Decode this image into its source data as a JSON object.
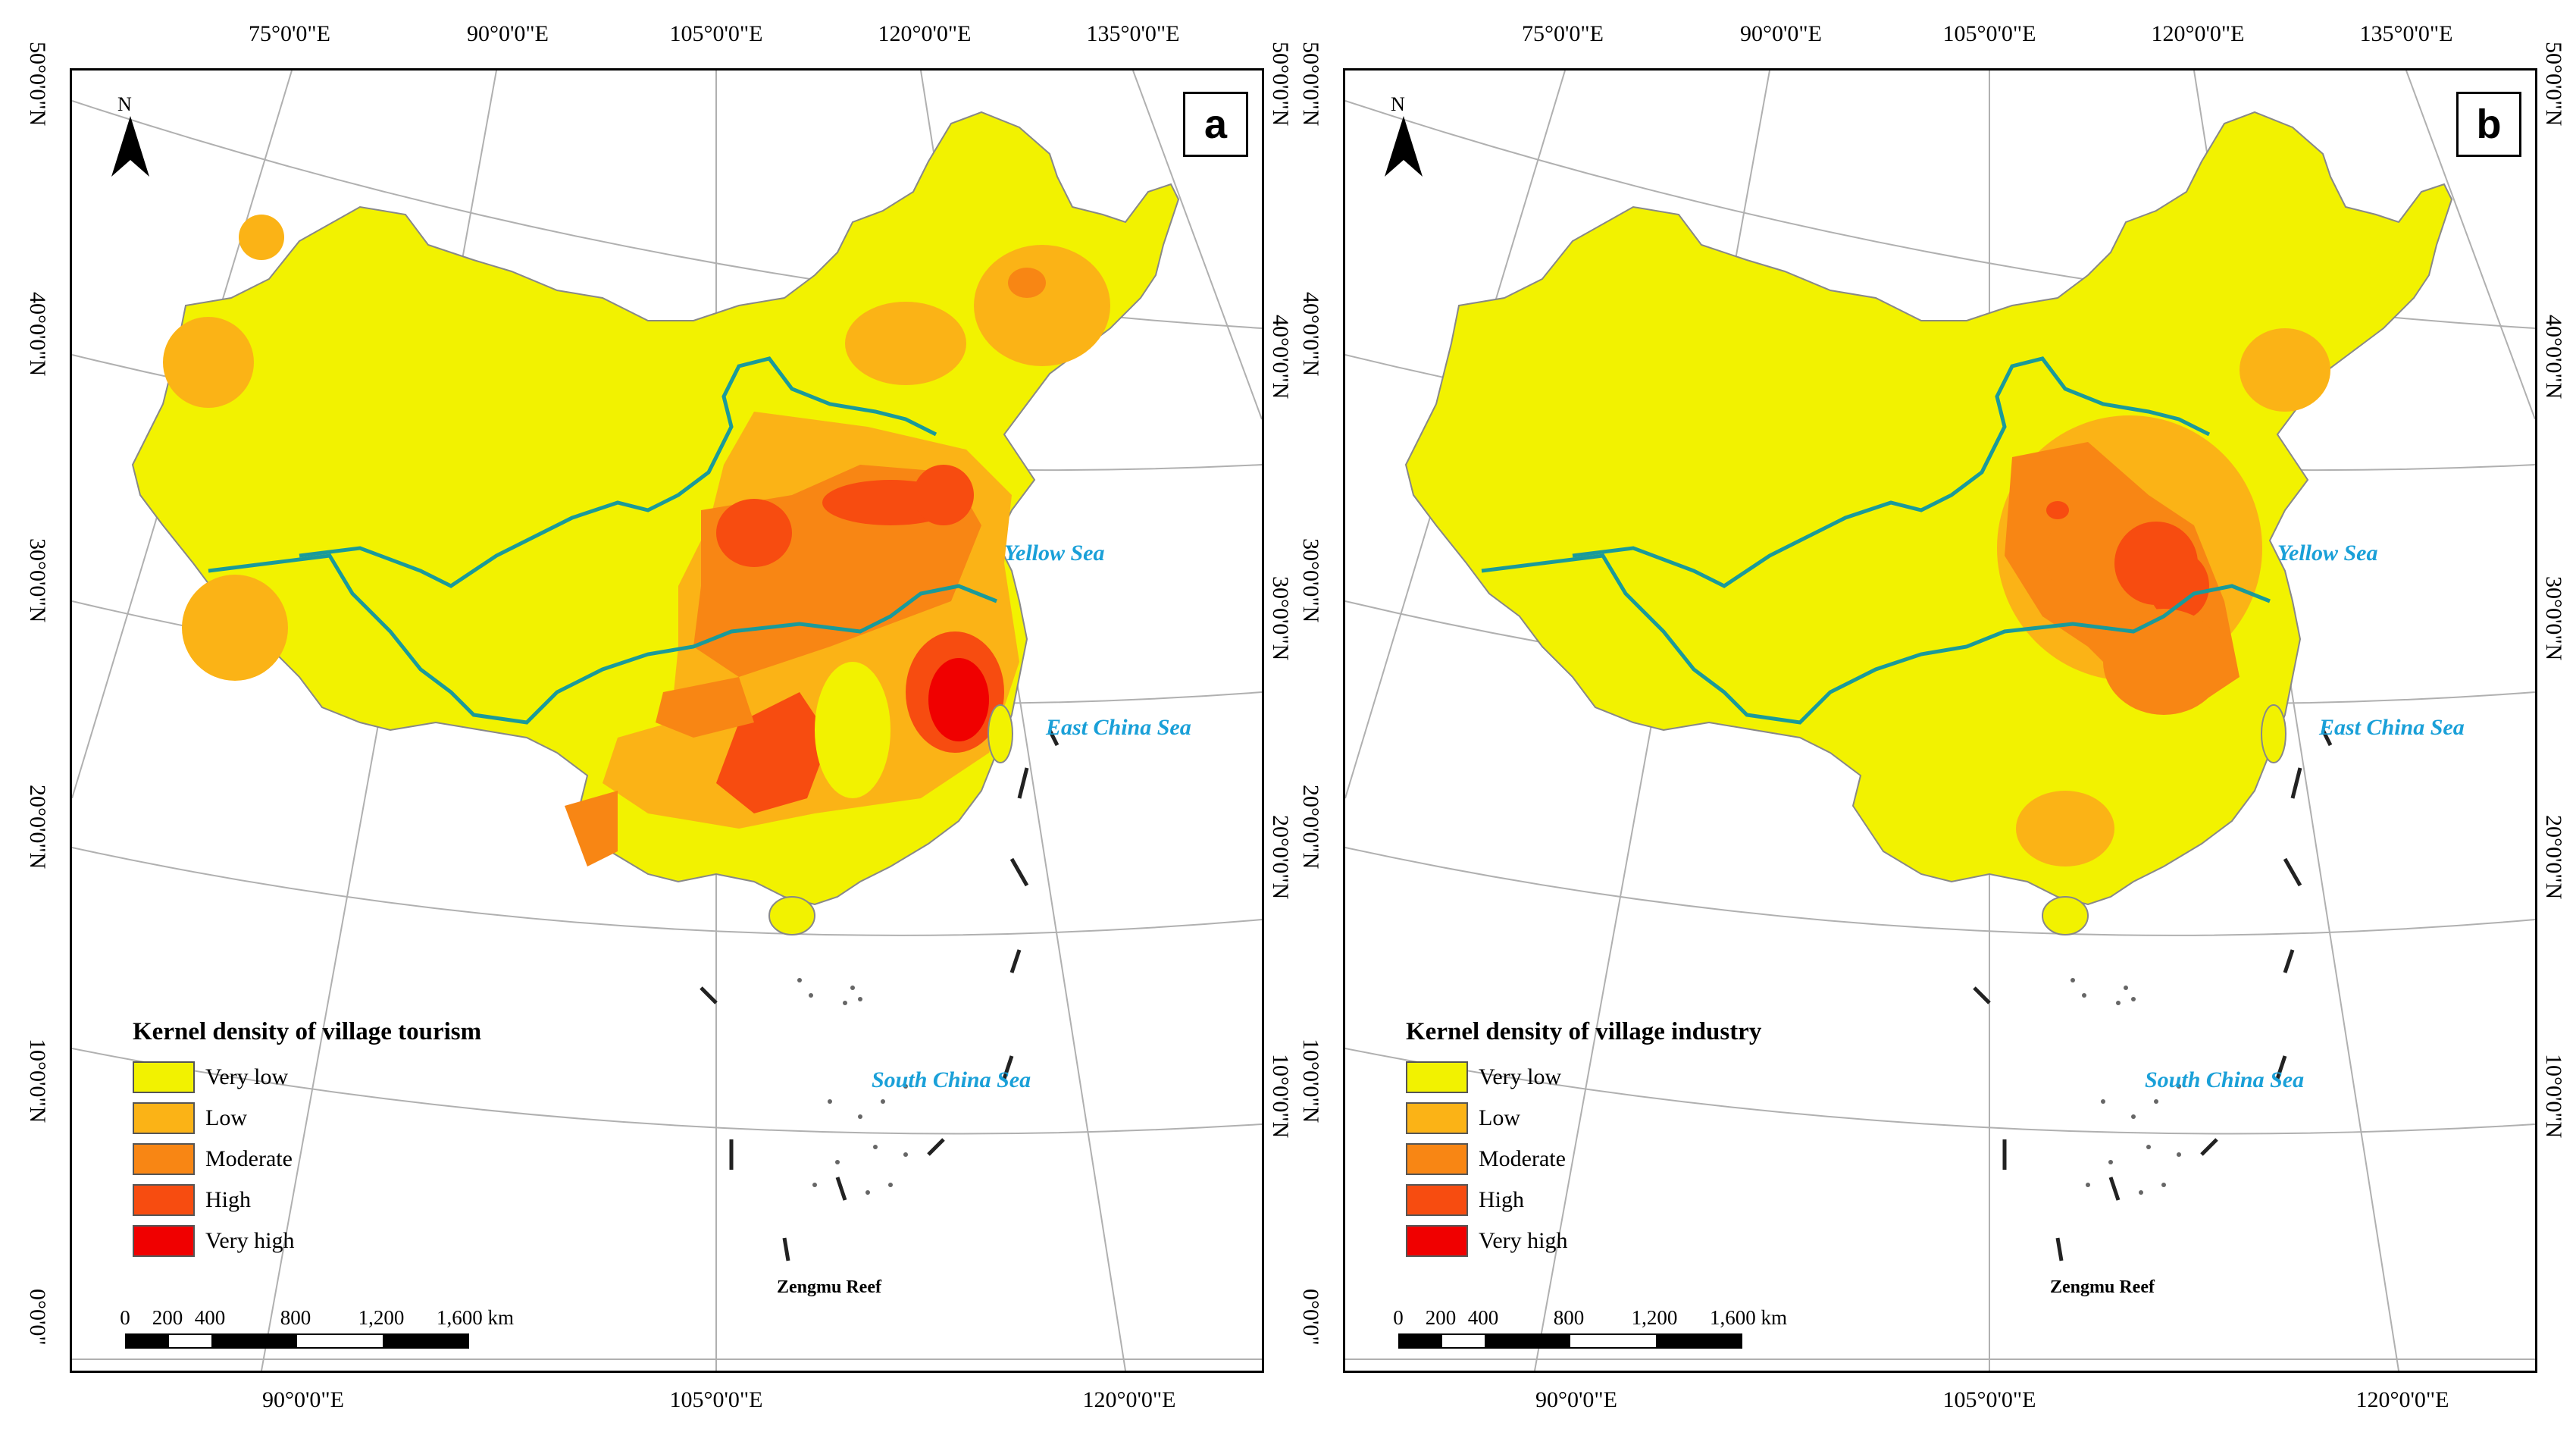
{
  "colors": {
    "very_low": "#f2f200",
    "low": "#fbb316",
    "moderate": "#f88614",
    "high": "#f74c10",
    "very_high": "#f00000",
    "river": "#1a9a9a",
    "sea_label": "#1aa0d8",
    "graticule": "#b0b0b0"
  },
  "longitude_ticks_top": [
    "75°0'0\"E",
    "90°0'0\"E",
    "105°0'0\"E",
    "120°0'0\"E",
    "135°0'0\"E"
  ],
  "longitude_ticks_bottom": [
    "90°0'0\"E",
    "105°0'0\"E",
    "120°0'0\"E"
  ],
  "latitude_ticks_left": [
    "50°0'0\"N",
    "40°0'0\"N",
    "30°0'0\"N",
    "20°0'0\"N",
    "10°0'0\"N",
    "0°0'0\""
  ],
  "latitude_ticks_right": [
    "50°0'0\"N",
    "40°0'0\"N",
    "30°0'0\"N",
    "20°0'0\"N",
    "10°0'0\"N"
  ],
  "north_label": "N",
  "seas": {
    "yellow": "Yellow Sea",
    "east_china": "East China Sea",
    "south_china": "South China Sea"
  },
  "reef_label": "Zengmu Reef",
  "scale_bar": {
    "labels": [
      "0",
      "200",
      "400",
      "800",
      "1,200",
      "1,600 km"
    ]
  },
  "legend_categories": [
    "Very low",
    "Low",
    "Moderate",
    "High",
    "Very high"
  ],
  "panels": [
    {
      "letter": "a",
      "legend_title": "Kernel density of village tourism"
    },
    {
      "letter": "b",
      "legend_title": "Kernel density of village industry"
    }
  ]
}
